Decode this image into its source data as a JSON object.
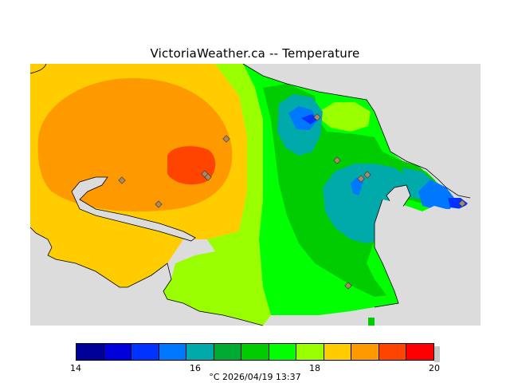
{
  "title": "VictoriaWeather.ca -- Temperature",
  "caption": "°C  2026/04/19 13:37",
  "colorbar": {
    "ticks": [
      "14",
      "16",
      "18",
      "20"
    ],
    "colors": [
      "#000099",
      "#0000dd",
      "#0033ff",
      "#0077ff",
      "#00aaaa",
      "#00aa33",
      "#00cc00",
      "#00ff00",
      "#99ff00",
      "#ffcc00",
      "#ff9900",
      "#ff4400",
      "#ff0000"
    ]
  },
  "map_colors": {
    "background": "#dcdcdc",
    "water": "#dcdcdc",
    "orange": "#ff9900",
    "red_orange": "#ff4400",
    "yellow": "#ffcc00",
    "yellow_green": "#99ff00",
    "green": "#00ff00",
    "dark_green": "#00cc00",
    "teal": "#00aaaa",
    "blue": "#0077ff",
    "deep_blue": "#0033ff"
  },
  "stations": {
    "marker_color": "#aa8866",
    "count": 11
  }
}
